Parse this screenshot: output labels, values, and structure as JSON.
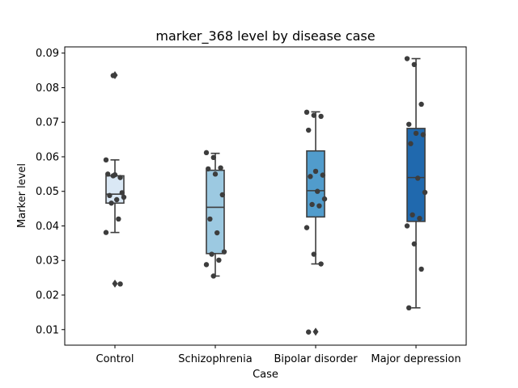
{
  "chart_data": {
    "type": "box",
    "title": "marker_368 level by disease case",
    "xlabel": "Case",
    "ylabel": "Marker level",
    "categories": [
      "Control",
      "Schizophrenia",
      "Bipolar disorder",
      "Major depression"
    ],
    "ylim": [
      0.0055,
      0.0918
    ],
    "yticks": [
      0.01,
      0.02,
      0.03,
      0.04,
      0.05,
      0.06,
      0.07,
      0.08,
      0.09
    ],
    "grid": false,
    "box_colors": [
      "#dae8f5",
      "#9cc9e1",
      "#519ccc",
      "#2069ae"
    ],
    "edge_color": "#3d3d3d",
    "point_color": "#3d3d3d",
    "boxes": [
      {
        "category": "Control",
        "q1": 0.0466,
        "median": 0.0492,
        "q3": 0.0545,
        "whisker_low": 0.0381,
        "whisker_high": 0.0591,
        "outliers": [
          0.0836,
          0.0233
        ]
      },
      {
        "category": "Schizophrenia",
        "q1": 0.032,
        "median": 0.0454,
        "q3": 0.0561,
        "whisker_low": 0.0255,
        "whisker_high": 0.061,
        "outliers": []
      },
      {
        "category": "Bipolar disorder",
        "q1": 0.0426,
        "median": 0.0502,
        "q3": 0.0617,
        "whisker_low": 0.029,
        "whisker_high": 0.073,
        "outliers": [
          0.0094
        ]
      },
      {
        "category": "Major depression",
        "q1": 0.0413,
        "median": 0.054,
        "q3": 0.0682,
        "whisker_low": 0.0163,
        "whisker_high": 0.0884,
        "outliers": []
      }
    ],
    "points": [
      [
        0.0591,
        0.0545,
        0.054,
        0.055,
        0.0548,
        0.0496,
        0.0488,
        0.0476,
        0.0483,
        0.0466,
        0.042,
        0.0381,
        0.0835,
        0.0232
      ],
      [
        0.0612,
        0.0598,
        0.0568,
        0.0565,
        0.055,
        0.049,
        0.042,
        0.038,
        0.0325,
        0.0318,
        0.0301,
        0.0288,
        0.0255
      ],
      [
        0.0729,
        0.072,
        0.0717,
        0.0677,
        0.0558,
        0.0547,
        0.0543,
        0.05,
        0.0478,
        0.0462,
        0.0458,
        0.0395,
        0.0318,
        0.029,
        0.0093
      ],
      [
        0.0884,
        0.0867,
        0.0752,
        0.0694,
        0.0668,
        0.0664,
        0.0638,
        0.0538,
        0.0497,
        0.0432,
        0.0422,
        0.04,
        0.0348,
        0.0275,
        0.0163
      ]
    ]
  }
}
